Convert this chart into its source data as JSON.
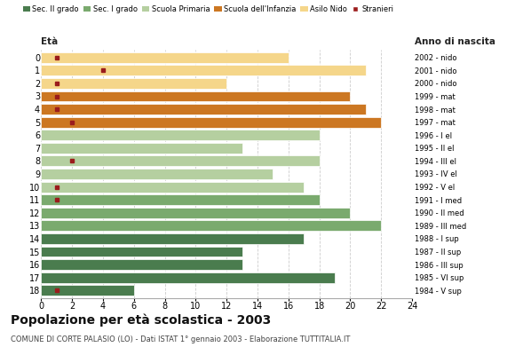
{
  "ages": [
    18,
    17,
    16,
    15,
    14,
    13,
    12,
    11,
    10,
    9,
    8,
    7,
    6,
    5,
    4,
    3,
    2,
    1,
    0
  ],
  "years": [
    "1984 - V sup",
    "1985 - VI sup",
    "1986 - III sup",
    "1987 - II sup",
    "1988 - I sup",
    "1989 - III med",
    "1990 - II med",
    "1991 - I med",
    "1992 - V el",
    "1993 - IV el",
    "1994 - III el",
    "1995 - II el",
    "1996 - I el",
    "1997 - mat",
    "1998 - mat",
    "1999 - mat",
    "2000 - nido",
    "2001 - nido",
    "2002 - nido"
  ],
  "bar_values": [
    6,
    19,
    13,
    13,
    17,
    22,
    20,
    18,
    17,
    15,
    18,
    13,
    18,
    22,
    21,
    20,
    12,
    21,
    16
  ],
  "bar_colors": [
    "#4a7c4e",
    "#4a7c4e",
    "#4a7c4e",
    "#4a7c4e",
    "#4a7c4e",
    "#7aaa6e",
    "#7aaa6e",
    "#7aaa6e",
    "#b5cfa0",
    "#b5cfa0",
    "#b5cfa0",
    "#b5cfa0",
    "#b5cfa0",
    "#cc7722",
    "#cc7722",
    "#cc7722",
    "#f5d68a",
    "#f5d68a",
    "#f5d68a"
  ],
  "stranieri_values": [
    1,
    0,
    0,
    0,
    0,
    0,
    0,
    1,
    1,
    0,
    2,
    0,
    0,
    2,
    1,
    1,
    1,
    4,
    1
  ],
  "legend_labels": [
    "Sec. II grado",
    "Sec. I grado",
    "Scuola Primaria",
    "Scuola dell'Infanzia",
    "Asilo Nido",
    "Stranieri"
  ],
  "legend_colors": [
    "#4a7c4e",
    "#7aaa6e",
    "#b5cfa0",
    "#cc7722",
    "#f5d68a",
    "#9b1c1c"
  ],
  "title": "Popolazione per età scolastica - 2003",
  "subtitle": "COMUNE DI CORTE PALASIO (LO) - Dati ISTAT 1° gennaio 2003 - Elaborazione TUTTITALIA.IT",
  "eta_label": "Età",
  "anno_label": "Anno di nascita",
  "xlim": [
    0,
    24
  ],
  "bg_color": "#ffffff",
  "grid_color": "#cccccc",
  "stranieri_color": "#9b1c1c"
}
